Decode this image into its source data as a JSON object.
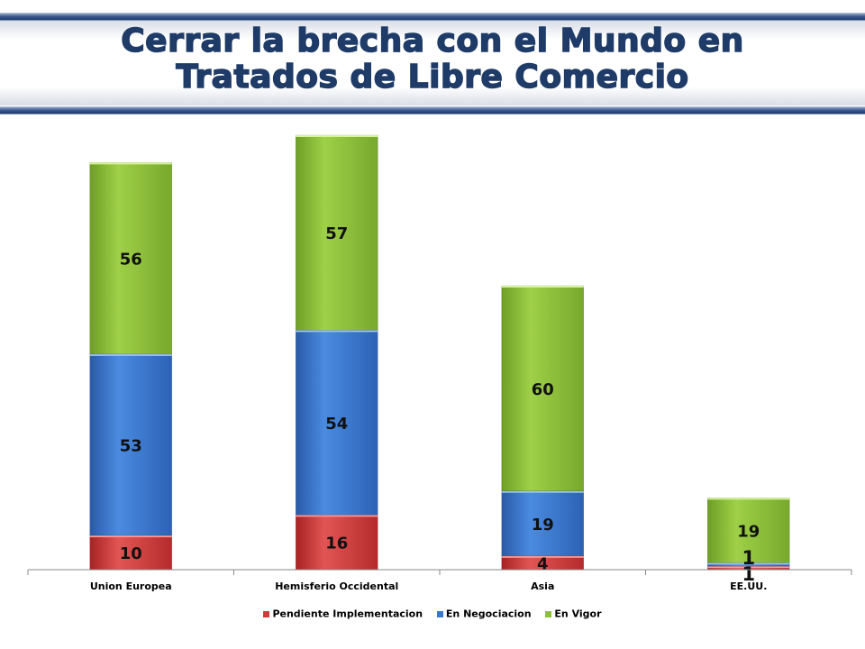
{
  "title": {
    "line1": "Cerrar la brecha con el Mundo en",
    "line2": "Tratados de Libre Comercio"
  },
  "chart_data": {
    "type": "bar",
    "stacked": true,
    "categories": [
      "Union Europea",
      "Hemisferio Occidental",
      "Asia",
      "EE.UU."
    ],
    "series": [
      {
        "name": "Pendiente Implementacion",
        "values": [
          10,
          16,
          4,
          1
        ],
        "labels": [
          "10",
          "16",
          "4",
          "1"
        ],
        "color": "#d23b3b"
      },
      {
        "name": "En Negociacion",
        "values": [
          53,
          54,
          19,
          1
        ],
        "labels": [
          "53",
          "54",
          "19",
          "1"
        ],
        "color": "#3a78d0"
      },
      {
        "name": "En Vigor",
        "values": [
          56,
          57,
          60,
          19
        ],
        "labels": [
          "56",
          "57",
          "60",
          "19"
        ],
        "color": "#8cbf3a"
      }
    ],
    "ylim": [
      0,
      127
    ],
    "legend_position": "bottom",
    "grid": false
  }
}
